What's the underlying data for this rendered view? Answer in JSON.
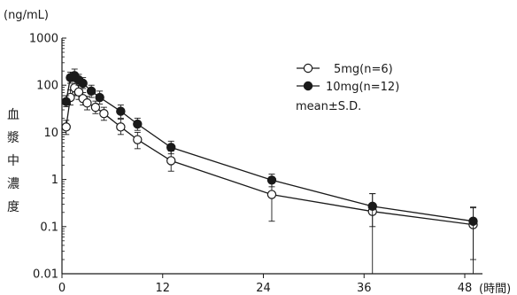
{
  "chart_data": {
    "type": "line",
    "title": "",
    "y_unit_label": "(ng/mL)",
    "xlabel": "(時間)",
    "ylabel": "血漿中濃度",
    "ylabel_chars": [
      "血",
      "漿",
      "中",
      "濃",
      "度"
    ],
    "x_scale": "linear",
    "y_scale": "log",
    "xlim": [
      0,
      48
    ],
    "ylim": [
      0.01,
      1000
    ],
    "x_ticks": [
      0,
      12,
      24,
      36,
      48
    ],
    "x_tick_labels": [
      "0",
      "12",
      "24",
      "36",
      "48"
    ],
    "y_ticks": [
      0.01,
      0.1,
      1,
      10,
      100,
      1000
    ],
    "y_tick_labels": [
      "0.01",
      "0.1",
      "1",
      "10",
      "100",
      "1000"
    ],
    "grid": false,
    "legend_position": "top-right",
    "legend_note": "mean±S.D.",
    "colors": {
      "axis": "#1a1a1a",
      "open_marker_fill": "#ffffff",
      "filled_marker_fill": "#1a1a1a"
    },
    "series": [
      {
        "name": "5mg(n=6)",
        "marker": "open-circle",
        "points": [
          {
            "x": 0.5,
            "y": 13,
            "lo": 9,
            "hi": 18
          },
          {
            "x": 1,
            "y": 55,
            "lo": 38,
            "hi": 80
          },
          {
            "x": 1.5,
            "y": 88,
            "lo": 60,
            "hi": 125
          },
          {
            "x": 2,
            "y": 72,
            "lo": 50,
            "hi": 100
          },
          {
            "x": 2.5,
            "y": 52,
            "lo": 38,
            "hi": 70
          },
          {
            "x": 3,
            "y": 42,
            "lo": 30,
            "hi": 58
          },
          {
            "x": 4,
            "y": 34,
            "lo": 25,
            "hi": 46
          },
          {
            "x": 5,
            "y": 25,
            "lo": 18,
            "hi": 34
          },
          {
            "x": 7,
            "y": 13,
            "lo": 9,
            "hi": 19
          },
          {
            "x": 9,
            "y": 7,
            "lo": 4.5,
            "hi": 10
          },
          {
            "x": 13,
            "y": 2.5,
            "lo": 1.5,
            "hi": 4
          },
          {
            "x": 25,
            "y": 0.48,
            "lo": 0.13,
            "hi": 0.9
          },
          {
            "x": 37,
            "y": 0.21,
            "lo": 0.01,
            "hi": 0.5
          },
          {
            "x": 49,
            "y": 0.11,
            "lo": 0.01,
            "hi": 0.25
          }
        ]
      },
      {
        "name": "10mg(n=12)",
        "marker": "filled-circle",
        "points": [
          {
            "x": 0.5,
            "y": 45,
            "lo": 35,
            "hi": 60
          },
          {
            "x": 1,
            "y": 145,
            "lo": 110,
            "hi": 190
          },
          {
            "x": 1.5,
            "y": 160,
            "lo": 120,
            "hi": 220
          },
          {
            "x": 2,
            "y": 130,
            "lo": 100,
            "hi": 170
          },
          {
            "x": 2.5,
            "y": 110,
            "lo": 85,
            "hi": 145
          },
          {
            "x": 3.5,
            "y": 75,
            "lo": 55,
            "hi": 100
          },
          {
            "x": 4.5,
            "y": 55,
            "lo": 40,
            "hi": 75
          },
          {
            "x": 7,
            "y": 28,
            "lo": 20,
            "hi": 38
          },
          {
            "x": 9,
            "y": 15,
            "lo": 11,
            "hi": 20
          },
          {
            "x": 13,
            "y": 4.8,
            "lo": 3.5,
            "hi": 6.5
          },
          {
            "x": 25,
            "y": 0.97,
            "lo": 0.7,
            "hi": 1.3
          },
          {
            "x": 37,
            "y": 0.27,
            "lo": 0.1,
            "hi": 0.5
          },
          {
            "x": 49,
            "y": 0.13,
            "lo": 0.02,
            "hi": 0.26
          }
        ]
      }
    ]
  }
}
